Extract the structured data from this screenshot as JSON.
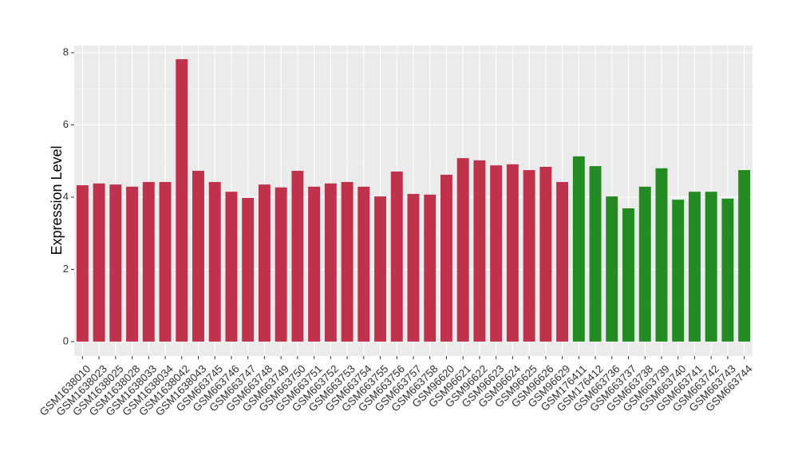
{
  "chart_data": {
    "type": "bar",
    "y_label": "Expression Level",
    "categories": [
      "GSM1638010",
      "GSM1638023",
      "GSM1638025",
      "GSM1638028",
      "GSM1638033",
      "GSM1638034",
      "GSM1638042",
      "GSM1638043",
      "GSM663745",
      "GSM663746",
      "GSM663747",
      "GSM663748",
      "GSM663749",
      "GSM663750",
      "GSM663751",
      "GSM663752",
      "GSM663753",
      "GSM663754",
      "GSM663755",
      "GSM663756",
      "GSM663757",
      "GSM663758",
      "GSM96620",
      "GSM96621",
      "GSM96622",
      "GSM96623",
      "GSM96624",
      "GSM96625",
      "GSM96626",
      "GSM96629",
      "GSM176411",
      "GSM176412",
      "GSM663736",
      "GSM663737",
      "GSM663738",
      "GSM663739",
      "GSM663740",
      "GSM663741",
      "GSM663742",
      "GSM663743",
      "GSM663744"
    ],
    "values": [
      4.33,
      4.38,
      4.35,
      4.29,
      4.42,
      4.42,
      7.82,
      4.73,
      4.42,
      4.15,
      3.98,
      4.35,
      4.27,
      4.73,
      4.29,
      4.38,
      4.42,
      4.29,
      4.02,
      4.71,
      4.09,
      4.07,
      4.62,
      5.08,
      5.02,
      4.88,
      4.91,
      4.75,
      4.84,
      4.42,
      5.13,
      4.86,
      4.02,
      3.69,
      4.29,
      4.8,
      3.93,
      4.15,
      4.15,
      3.96,
      4.75
    ],
    "colors": [
      "#c0314b",
      "#c0314b",
      "#c0314b",
      "#c0314b",
      "#c0314b",
      "#c0314b",
      "#c0314b",
      "#c0314b",
      "#c0314b",
      "#c0314b",
      "#c0314b",
      "#c0314b",
      "#c0314b",
      "#c0314b",
      "#c0314b",
      "#c0314b",
      "#c0314b",
      "#c0314b",
      "#c0314b",
      "#c0314b",
      "#c0314b",
      "#c0314b",
      "#c0314b",
      "#c0314b",
      "#c0314b",
      "#c0314b",
      "#c0314b",
      "#c0314b",
      "#c0314b",
      "#c0314b",
      "#228b22",
      "#228b22",
      "#228b22",
      "#228b22",
      "#228b22",
      "#228b22",
      "#228b22",
      "#228b22",
      "#228b22",
      "#228b22",
      "#228b22"
    ],
    "ylim": [
      -0.4,
      8.2
    ],
    "yticks": [
      0,
      2,
      4,
      6,
      8
    ],
    "grid": true
  }
}
